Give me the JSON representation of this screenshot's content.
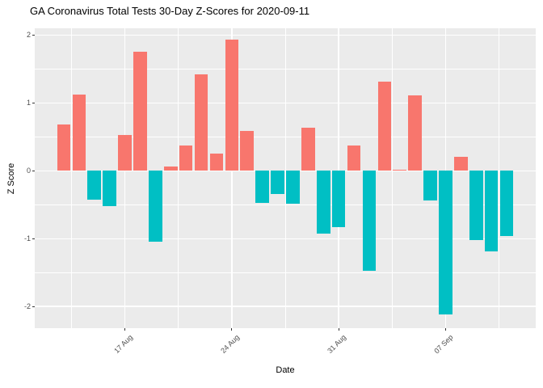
{
  "title": "GA Coronavirus Total Tests 30-Day Z-Scores for 2020-09-11",
  "axes": {
    "x_title": "Date",
    "y_title": "Z Score"
  },
  "colors": {
    "positive_bar": "#F8766D",
    "negative_bar": "#00BFC4",
    "panel_background": "#EBEBEB",
    "gridline": "#FFFFFF",
    "tick_label_text": "#4D4D4D",
    "tick_mark": "#333333",
    "title_text": "#000000"
  },
  "chart_data": {
    "type": "bar",
    "title": "GA Coronavirus Total Tests 30-Day Z-Scores for 2020-09-11",
    "xlabel": "Date",
    "ylabel": "Z Score",
    "x": [
      "2020-08-13",
      "2020-08-14",
      "2020-08-15",
      "2020-08-16",
      "2020-08-17",
      "2020-08-18",
      "2020-08-19",
      "2020-08-20",
      "2020-08-21",
      "2020-08-22",
      "2020-08-23",
      "2020-08-24",
      "2020-08-25",
      "2020-08-26",
      "2020-08-27",
      "2020-08-28",
      "2020-08-29",
      "2020-08-30",
      "2020-08-31",
      "2020-09-01",
      "2020-09-02",
      "2020-09-03",
      "2020-09-04",
      "2020-09-05",
      "2020-09-06",
      "2020-09-07",
      "2020-09-08",
      "2020-09-09",
      "2020-09-10",
      "2020-09-11"
    ],
    "values": [
      0.68,
      1.12,
      -0.42,
      -0.52,
      0.53,
      1.75,
      -1.04,
      0.06,
      0.37,
      1.42,
      0.25,
      1.93,
      0.59,
      -0.47,
      -0.34,
      -0.48,
      0.63,
      -0.93,
      -0.83,
      0.37,
      -1.47,
      1.31,
      0.02,
      1.11,
      -0.44,
      -2.12,
      0.21,
      -1.02,
      -1.19,
      -0.96
    ],
    "x_ticks": [
      {
        "date": "2020-08-17",
        "label": "17 Aug"
      },
      {
        "date": "2020-08-24",
        "label": "24 Aug"
      },
      {
        "date": "2020-08-31",
        "label": "31 Aug"
      },
      {
        "date": "2020-09-07",
        "label": "07 Sep"
      }
    ],
    "y_ticks": [
      -2,
      -1,
      0,
      1,
      2
    ],
    "y_tick_labels": [
      "-2",
      "-1",
      "0",
      "1",
      "2"
    ],
    "ylim": [
      -2.32,
      2.1
    ],
    "grid": true,
    "legend": false,
    "color_rule": {
      "positive": "#F8766D",
      "negative": "#00BFC4"
    }
  }
}
